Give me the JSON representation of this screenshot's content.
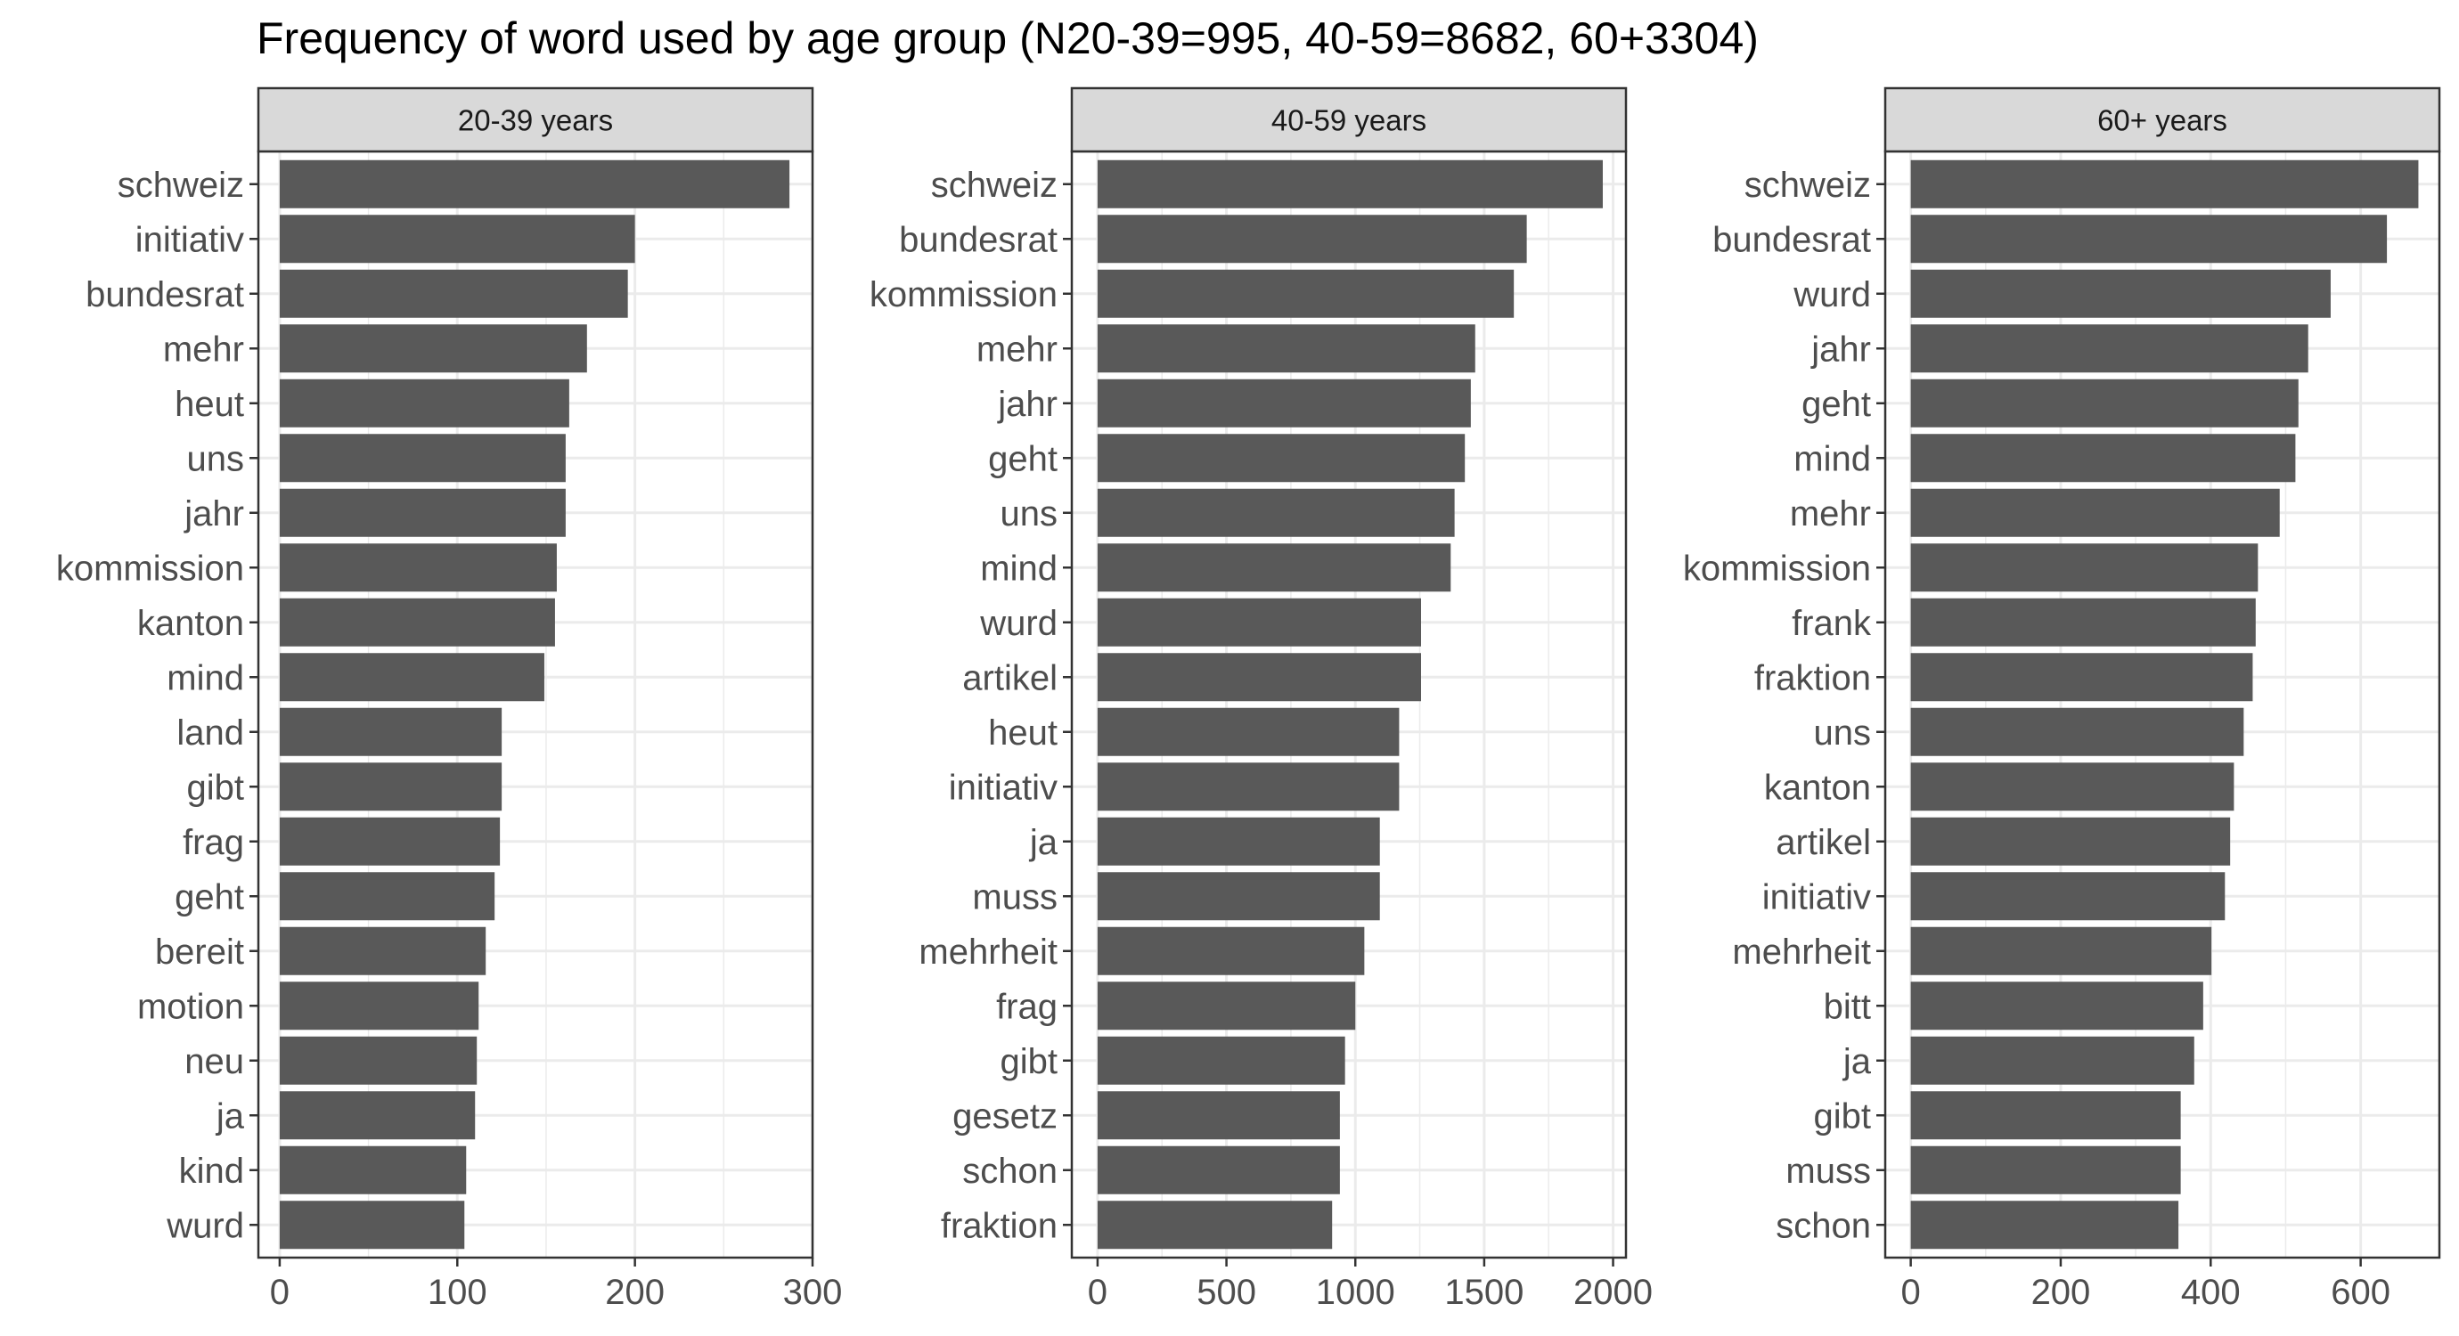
{
  "chart_data": {
    "type": "bar",
    "orientation": "horizontal",
    "title": "Frequency of word used by age group (N20-39=995, 40-59=8682, 60+3304)",
    "grid": true,
    "bar_color": "#595959",
    "panel_border_color": "#333333",
    "strip_fill": "#d9d9d9",
    "grid_color": "#ebebeb",
    "panels": [
      {
        "strip_label": "20-39 years",
        "xlim": [
          -12,
          300
        ],
        "ticks": [
          0,
          100,
          200,
          300
        ],
        "tick_labels": [
          "0",
          "100",
          "200",
          "300"
        ],
        "categories": [
          "schweiz",
          "initiativ",
          "bundesrat",
          "mehr",
          "heut",
          "uns",
          "jahr",
          "kommission",
          "kanton",
          "mind",
          "land",
          "gibt",
          "frag",
          "geht",
          "bereit",
          "motion",
          "neu",
          "ja",
          "kind",
          "wurd"
        ],
        "values": [
          287,
          200,
          196,
          173,
          163,
          161,
          161,
          156,
          155,
          149,
          125,
          125,
          124,
          121,
          116,
          112,
          111,
          110,
          105,
          104
        ]
      },
      {
        "strip_label": "40-59 years",
        "xlim": [
          -100,
          2050
        ],
        "ticks": [
          0,
          500,
          1000,
          1500,
          2000
        ],
        "tick_labels": [
          "0",
          "500",
          "1000",
          "1500",
          "2000"
        ],
        "categories": [
          "schweiz",
          "bundesrat",
          "kommission",
          "mehr",
          "jahr",
          "geht",
          "uns",
          "mind",
          "wurd",
          "artikel",
          "heut",
          "initiativ",
          "ja",
          "muss",
          "mehrheit",
          "frag",
          "gibt",
          "gesetz",
          "schon",
          "fraktion"
        ],
        "values": [
          1960,
          1665,
          1615,
          1465,
          1448,
          1425,
          1385,
          1370,
          1255,
          1255,
          1170,
          1170,
          1095,
          1095,
          1035,
          1000,
          960,
          940,
          940,
          910
        ]
      },
      {
        "strip_label": "60+ years",
        "xlim": [
          -34,
          705
        ],
        "ticks": [
          0,
          200,
          400,
          600
        ],
        "tick_labels": [
          "0",
          "200",
          "400",
          "600"
        ],
        "categories": [
          "schweiz",
          "bundesrat",
          "wurd",
          "jahr",
          "geht",
          "mind",
          "mehr",
          "kommission",
          "frank",
          "fraktion",
          "uns",
          "kanton",
          "artikel",
          "initiativ",
          "mehrheit",
          "bitt",
          "ja",
          "gibt",
          "muss",
          "schon"
        ],
        "values": [
          677,
          635,
          560,
          530,
          517,
          513,
          492,
          463,
          460,
          456,
          444,
          431,
          426,
          419,
          401,
          390,
          378,
          360,
          360,
          357
        ]
      }
    ]
  }
}
